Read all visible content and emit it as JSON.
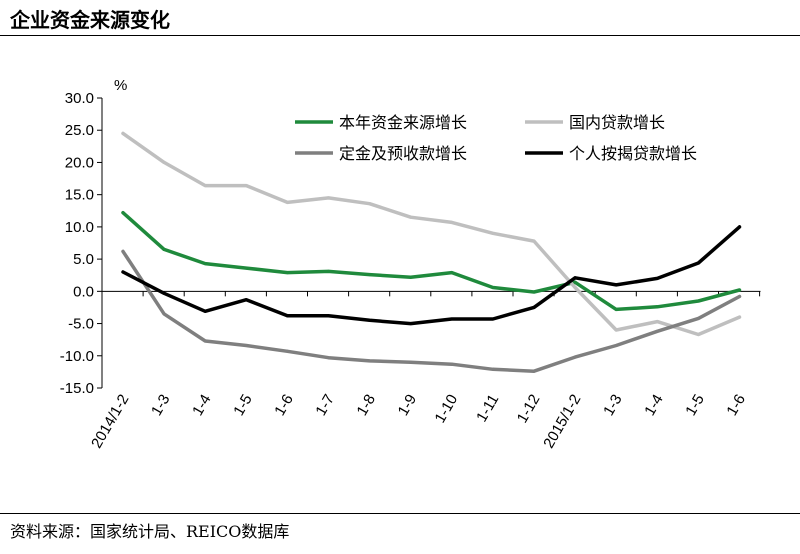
{
  "header": {
    "title": "企业资金来源变化"
  },
  "footer": {
    "source": "资料来源：国家统计局、REICO数据库"
  },
  "chart_data": {
    "type": "line",
    "ylabel": "%",
    "ylim": [
      -15,
      30
    ],
    "y_ticks": [
      "30.0",
      "25.0",
      "20.0",
      "15.0",
      "10.0",
      "5.0",
      "0.0",
      "-5.0",
      "-10.0",
      "-15.0"
    ],
    "categories": [
      "2014/1-2",
      "1-3",
      "1-4",
      "1-5",
      "1-6",
      "1-7",
      "1-8",
      "1-9",
      "1-10",
      "1-11",
      "1-12",
      "2015/1-2",
      "1-3",
      "1-4",
      "1-5",
      "1-6"
    ],
    "grid": false,
    "legend_position": "top-right",
    "series": [
      {
        "name": "本年资金来源增长",
        "color": "#1f8a3c",
        "values": [
          12.2,
          6.5,
          4.3,
          3.6,
          2.9,
          3.1,
          2.6,
          2.2,
          2.9,
          0.6,
          -0.1,
          1.4,
          -2.8,
          -2.4,
          -1.5,
          0.2
        ]
      },
      {
        "name": "国内贷款增长",
        "color": "#bfbfbf",
        "values": [
          24.5,
          20.0,
          16.4,
          16.4,
          13.8,
          14.5,
          13.6,
          11.5,
          10.7,
          9.0,
          7.8,
          0.6,
          -6.0,
          -4.7,
          -6.7,
          -4.0
        ]
      },
      {
        "name": "定金及预收款增长",
        "color": "#7f7f7f",
        "values": [
          6.2,
          -3.5,
          -7.7,
          -8.4,
          -9.3,
          -10.3,
          -10.8,
          -11.0,
          -11.3,
          -12.1,
          -12.4,
          -10.2,
          -8.4,
          -6.2,
          -4.2,
          -0.8
        ]
      },
      {
        "name": "个人按揭贷款增长",
        "color": "#000000",
        "values": [
          3.0,
          -0.3,
          -3.1,
          -1.3,
          -3.8,
          -3.8,
          -4.5,
          -5.0,
          -4.3,
          -4.3,
          -2.5,
          2.1,
          1.0,
          2.0,
          4.4,
          10.0
        ]
      }
    ]
  }
}
